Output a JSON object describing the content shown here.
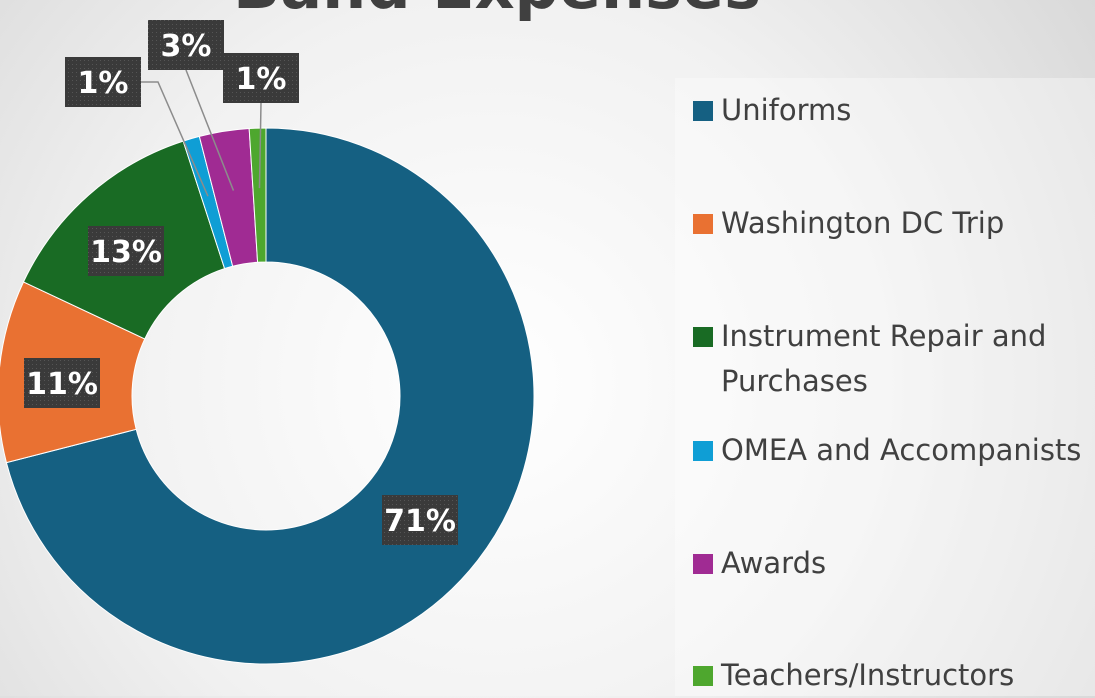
{
  "chart_data": {
    "type": "donut",
    "title": "Band Expenses",
    "categories": [
      "Uniforms",
      "Washington DC Trip",
      "Instrument Repair and Purchases",
      "OMEA and Accompanists",
      "Awards",
      "Teachers/Instructors"
    ],
    "values": [
      71,
      11,
      13,
      1,
      3,
      1
    ],
    "value_labels": [
      "71%",
      "11%",
      "13%",
      "1%",
      "3%",
      "1%"
    ],
    "colors": [
      "#156082",
      "#e97132",
      "#196b24",
      "#0f9ed5",
      "#a02b93",
      "#4ea72e"
    ],
    "legend": "right"
  }
}
